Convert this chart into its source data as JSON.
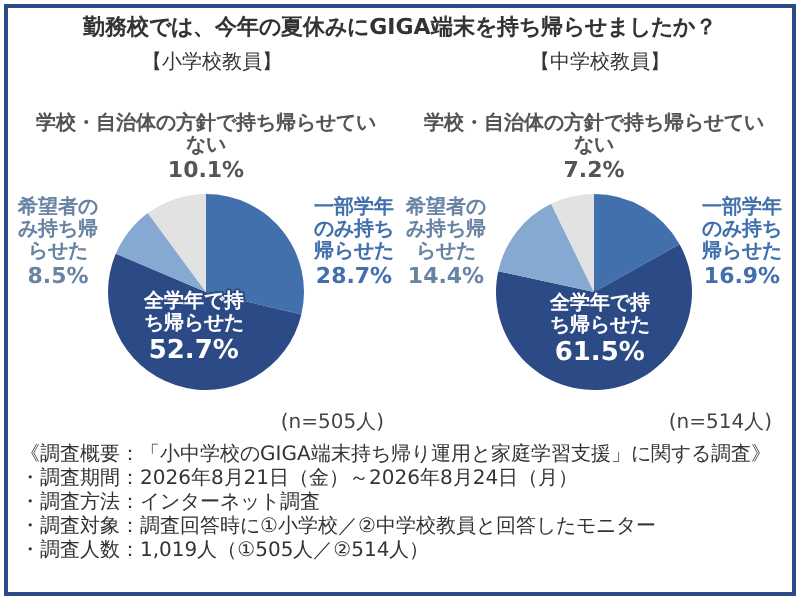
{
  "chart_data": [
    {
      "type": "pie",
      "title": "勤務校では、今年の夏休みにGIGA端末を持ち帰らせましたか？",
      "subtitle": "【小学校教員】",
      "categories": [
        "一部学年のみ持ち帰らせた",
        "全学年で持ち帰らせた",
        "希望者のみ持ち帰らせた",
        "学校・自治体の方針で持ち帰らせていない"
      ],
      "values": [
        28.7,
        52.7,
        8.5,
        10.1
      ],
      "value_labels": [
        "28.7%",
        "52.7%",
        "8.5%",
        "10.1%"
      ],
      "colors": [
        "#4270ad",
        "#2c4a85",
        "#86a9d1",
        "#e2e2e2"
      ],
      "annotations": [
        "(n=505人)"
      ]
    },
    {
      "type": "pie",
      "subtitle": "【中学校教員】",
      "categories": [
        "一部学年のみ持ち帰らせた",
        "全学年で持ち帰らせた",
        "希望者のみ持ち帰らせた",
        "学校・自治体の方針で持ち帰らせていない"
      ],
      "values": [
        16.9,
        61.5,
        14.4,
        7.2
      ],
      "value_labels": [
        "16.9%",
        "61.5%",
        "14.4%",
        "7.2%"
      ],
      "colors": [
        "#4270ad",
        "#2c4a85",
        "#86a9d1",
        "#e2e2e2"
      ],
      "annotations": [
        "(n=514人)",
        "《調査概要：「小中学校のGIGA端末持ち帰り運用と家庭学習支援」に関する調査》",
        "・調査期間：2026年8月21日（金）～2026年8月24日（月）",
        "・調査方法：インターネット調査",
        "・調査対象：調査回答時に①小学校／②中学校教員と回答したモニター",
        "・調査人数：1,019人（①505人／②514人）"
      ]
    }
  ]
}
